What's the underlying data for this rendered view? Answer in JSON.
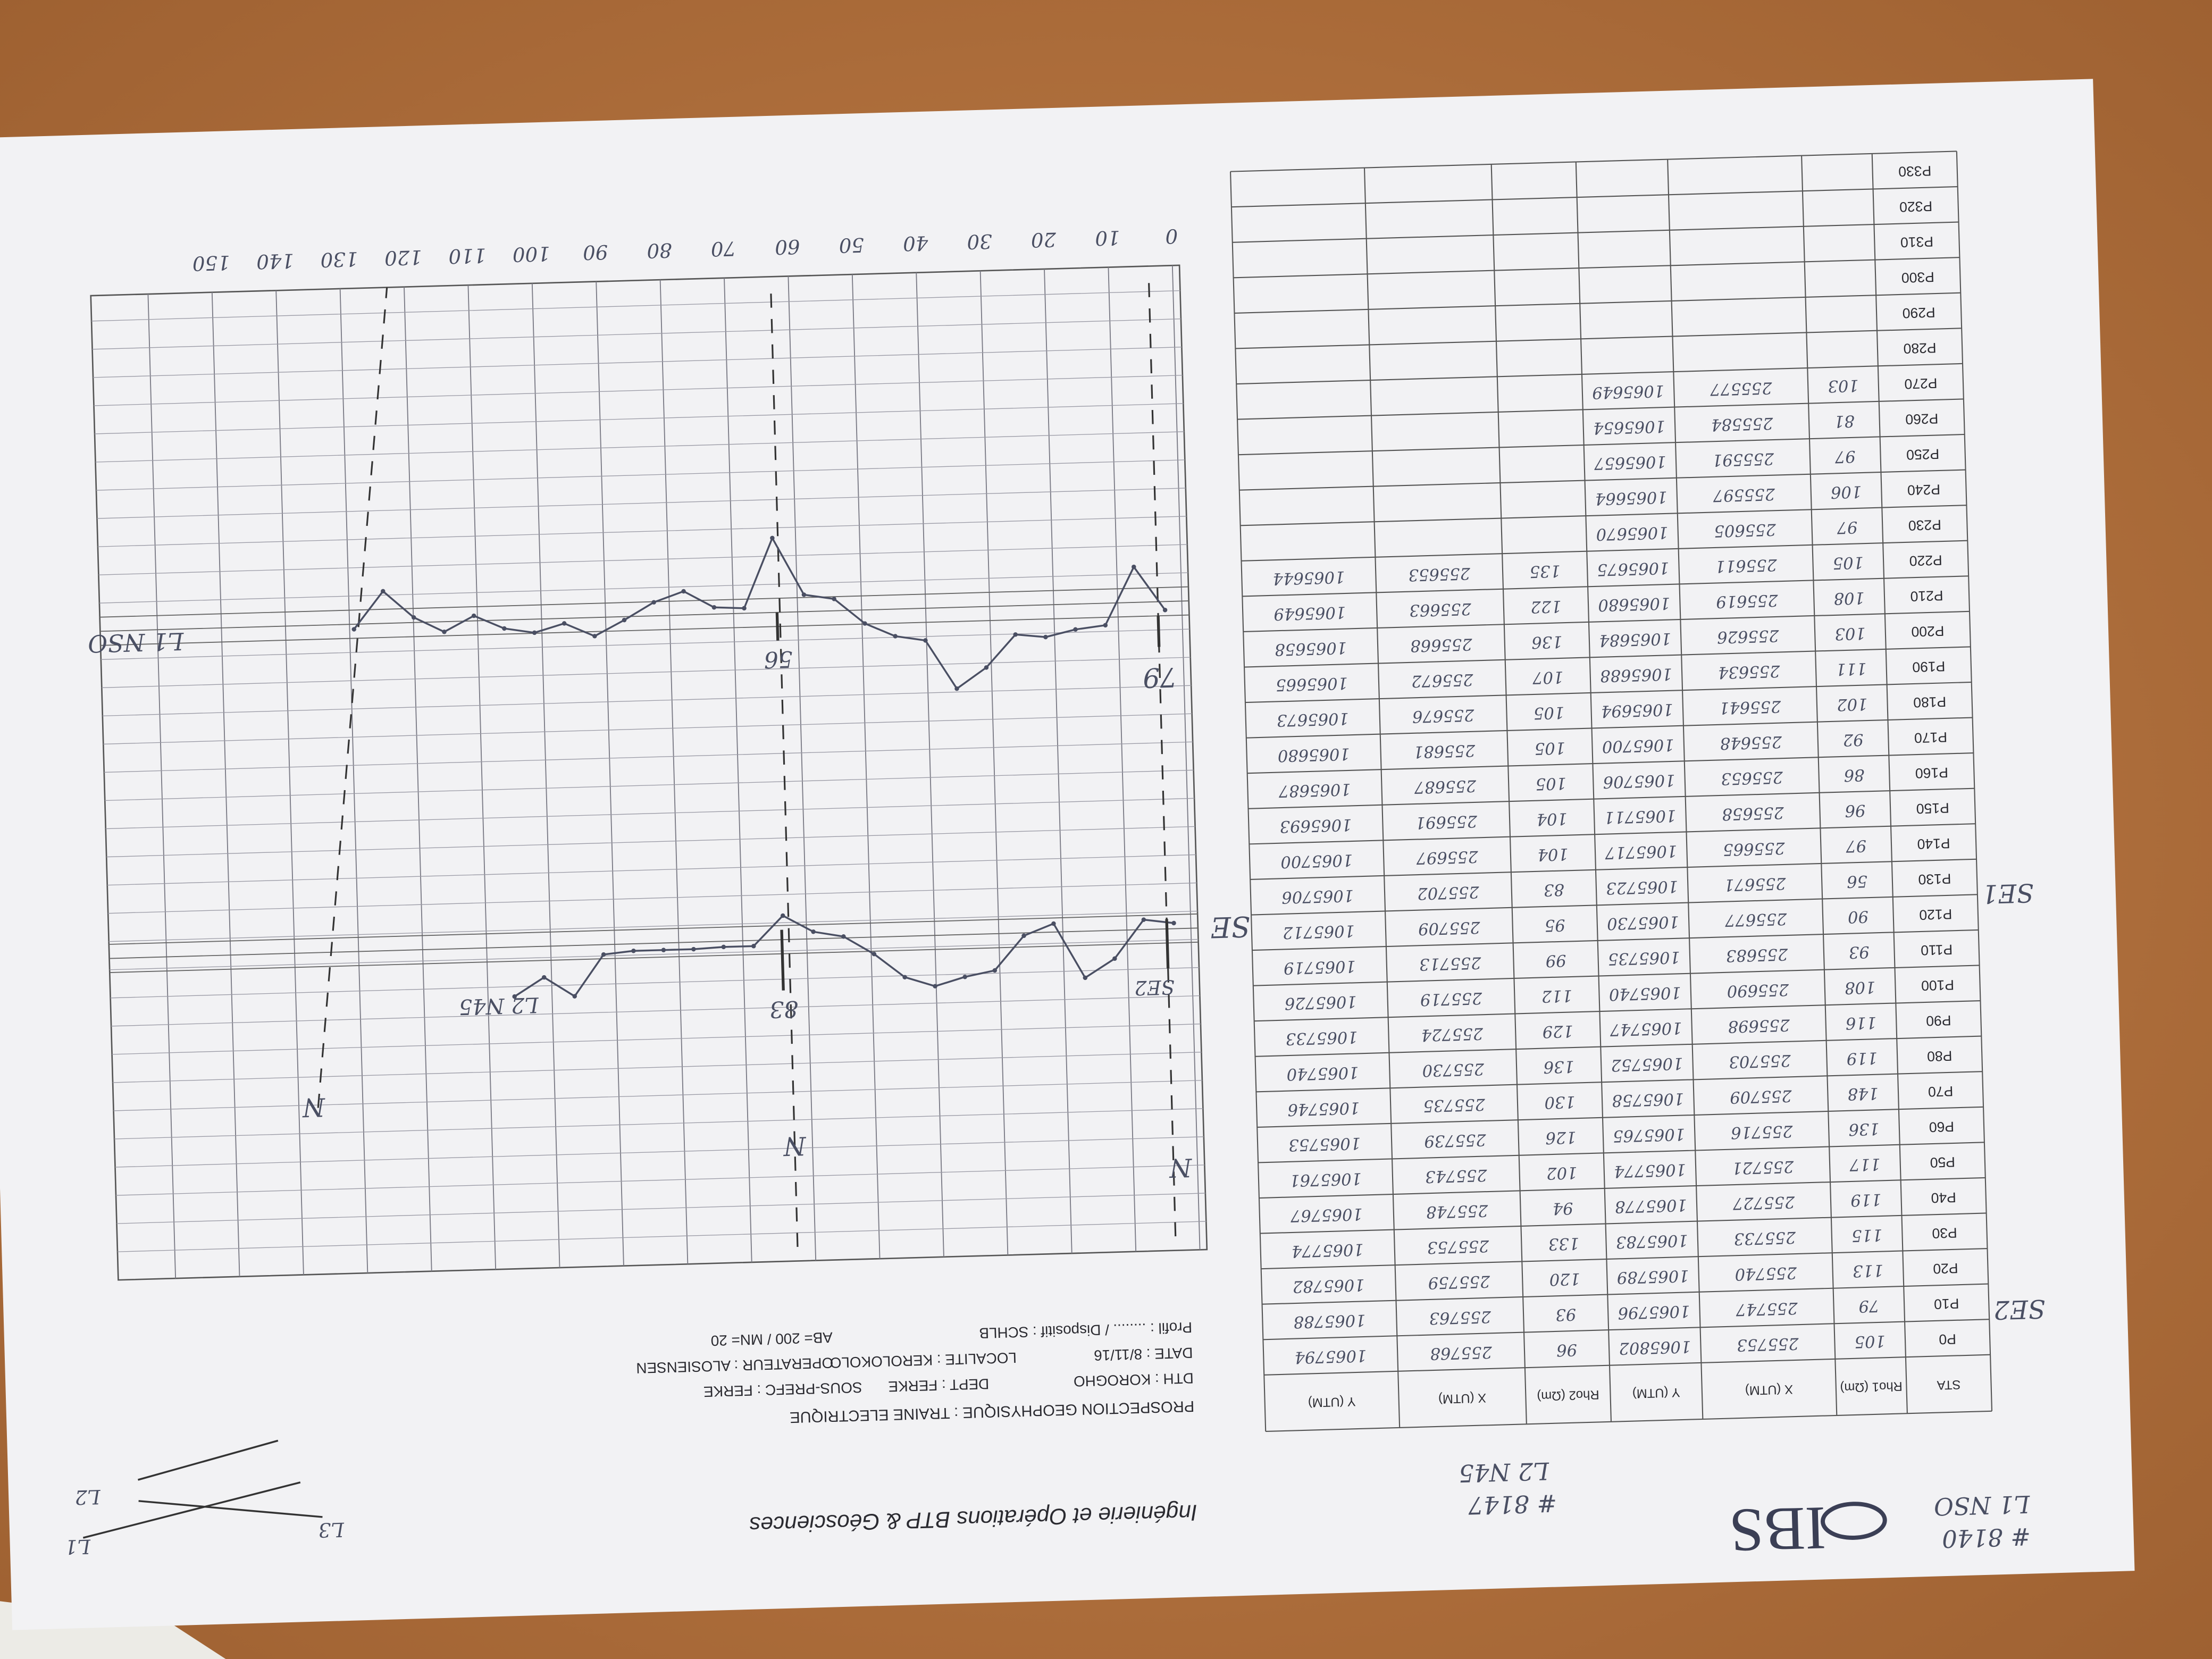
{
  "header": {
    "logo": "IBS",
    "company": "Ingénierie et Opérations BTP & Géosciences",
    "notes": [
      "# 8140",
      "L1 NSO",
      "# 8147",
      "L2 N45"
    ]
  },
  "form": {
    "title": "PROSPECTION GEOPHYSIQUE : TRAINE ELECTRIQUE",
    "lines": [
      "DTH : KOROGHO",
      "DEPT : FERKE",
      "SOUS-PREFC : FERKE",
      "DATE : 8/11/16",
      "LOCALITE : KEROLOKOLO",
      "OPERATEUR : ALOSIENSEN",
      "Profil : ........ / Dispositif : SCHLB",
      "AB= 200 / MN= 20"
    ]
  },
  "table": {
    "columns": [
      "STA",
      "Rho1 (Ωm)",
      "X (UTM)",
      "Y (UTM)",
      "Rho2 (Ωm)",
      "X (UTM)",
      "Y (UTM)"
    ],
    "rows": [
      [
        "P0",
        105,
        255753,
        1065802,
        96,
        255768,
        1065794
      ],
      [
        "P10",
        79,
        255747,
        1065796,
        93,
        255763,
        1065788
      ],
      [
        "P20",
        113,
        255740,
        1065789,
        120,
        255759,
        1065782
      ],
      [
        "P30",
        115,
        255733,
        1065783,
        133,
        255753,
        1065774
      ],
      [
        "P40",
        119,
        255727,
        1065778,
        94,
        255748,
        1065767
      ],
      [
        "P50",
        117,
        255721,
        1065774,
        102,
        255743,
        1065761
      ],
      [
        "P60",
        136,
        255716,
        1065765,
        126,
        255739,
        1065753
      ],
      [
        "P70",
        148,
        255709,
        1065758,
        130,
        255735,
        1065746
      ],
      [
        "P80",
        119,
        255703,
        1065752,
        136,
        255730,
        1065740
      ],
      [
        "P90",
        116,
        255698,
        1065747,
        129,
        255724,
        1065733
      ],
      [
        "P100",
        108,
        255690,
        1065740,
        112,
        255719,
        1065726
      ],
      [
        "P110",
        93,
        255683,
        1065735,
        99,
        255713,
        1065719
      ],
      [
        "P120",
        90,
        255677,
        1065730,
        95,
        255709,
        1065712
      ],
      [
        "P130",
        56,
        255671,
        1065723,
        83,
        255702,
        1065706
      ],
      [
        "P140",
        97,
        255665,
        1065717,
        104,
        255697,
        1065700
      ],
      [
        "P150",
        96,
        255658,
        1065711,
        104,
        255691,
        1065693
      ],
      [
        "P160",
        86,
        255653,
        1065706,
        105,
        255687,
        1065687
      ],
      [
        "P170",
        92,
        255648,
        1065700,
        105,
        255681,
        1065680
      ],
      [
        "P180",
        102,
        255641,
        1065694,
        105,
        255676,
        1065673
      ],
      [
        "P190",
        111,
        255634,
        1065688,
        107,
        255672,
        1065665
      ],
      [
        "P200",
        103,
        255626,
        1065684,
        136,
        255668,
        1065658
      ],
      [
        "P210",
        108,
        255619,
        1065680,
        122,
        255663,
        1065649
      ],
      [
        "P220",
        105,
        255611,
        1065675,
        135,
        255653,
        1065644
      ],
      [
        "P230",
        97,
        255605,
        1065670
      ],
      [
        "P240",
        106,
        255597,
        1065664
      ],
      [
        "P250",
        97,
        255591,
        1065657
      ],
      [
        "P260",
        81,
        255584,
        1065654
      ],
      [
        "P270",
        103,
        255577,
        1065649
      ],
      [
        "P280"
      ],
      [
        "P290"
      ],
      [
        "P300"
      ],
      [
        "P310"
      ],
      [
        "P320"
      ],
      [
        "P330"
      ]
    ]
  },
  "side_labels": [
    "SE1",
    "SE2"
  ],
  "graph": {
    "x_labels": [
      0,
      10,
      20,
      30,
      40,
      50,
      60,
      70,
      80,
      90,
      100,
      110,
      120,
      130,
      140,
      150
    ],
    "annotations": [
      "79",
      "56",
      "83",
      "SE2",
      "L1 NSO",
      "L2 N45",
      "N",
      "N",
      "N",
      "SE"
    ]
  },
  "sketch": {
    "labels": [
      "L1",
      "L2",
      "L3"
    ]
  }
}
